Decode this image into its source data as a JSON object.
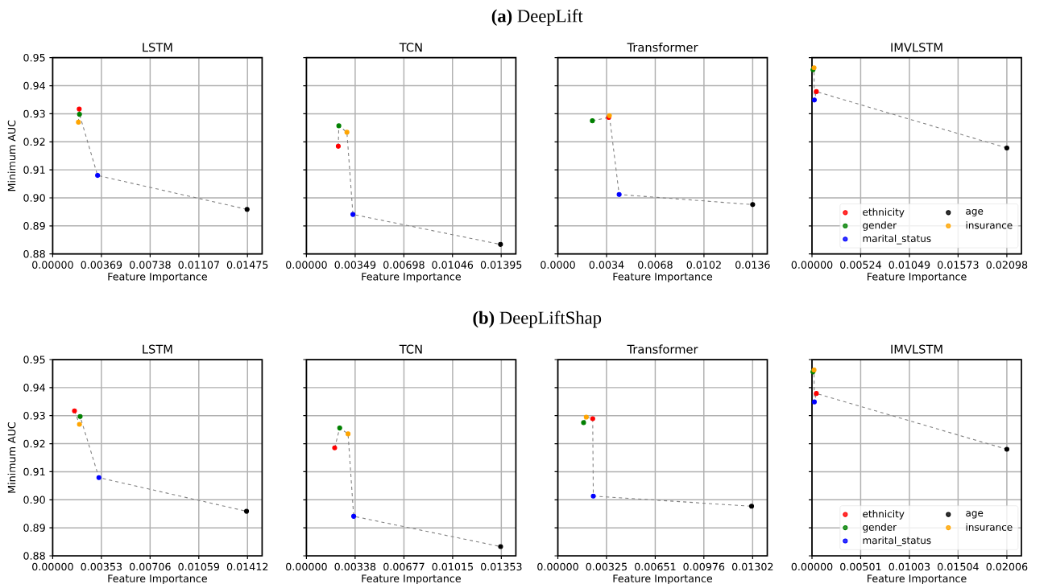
{
  "chart_data": [
    {
      "type": "scatter",
      "title": "LSTM",
      "xlabel": "Feature Importance",
      "ylabel": "Minimum AUC",
      "annotations": [
        "**(a)** DeepLift"
      ],
      "grid": true,
      "marker": "circle",
      "xlim": [
        0,
        0.01586
      ],
      "ylim": [
        0.88,
        0.95
      ],
      "xticks": [
        {
          "value": 0,
          "label": "0.00000"
        },
        {
          "value": 0.00369,
          "label": "0.00369"
        },
        {
          "value": 0.00738,
          "label": "0.00738"
        },
        {
          "value": 0.01107,
          "label": "0.01107"
        },
        {
          "value": 0.01475,
          "label": "0.01475"
        }
      ],
      "yticks": [
        {
          "value": 0.88,
          "label": "0.88"
        },
        {
          "value": 0.89,
          "label": "0.89"
        },
        {
          "value": 0.9,
          "label": "0.90"
        },
        {
          "value": 0.91,
          "label": "0.91"
        },
        {
          "value": 0.92,
          "label": "0.92"
        },
        {
          "value": 0.93,
          "label": "0.93"
        },
        {
          "value": 0.94,
          "label": "0.94"
        },
        {
          "value": 0.95,
          "label": "0.95"
        }
      ],
      "series": [
        {
          "type": "line",
          "color": "#808080",
          "line_style": "dashed",
          "marker": "none",
          "x": [
            0.00195,
            0.00201,
            0.00203,
            0.0034,
            0.01472
          ],
          "values": [
            0.927,
            0.9317,
            0.9298,
            0.908,
            0.8959
          ]
        },
        {
          "color": "#ff0000",
          "x": [
            0.00201
          ],
          "values": [
            0.9317
          ]
        },
        {
          "color": "#008000",
          "x": [
            0.00203
          ],
          "values": [
            0.9298
          ]
        },
        {
          "color": "#0000ff",
          "x": [
            0.0034
          ],
          "values": [
            0.908
          ]
        },
        {
          "color": "#000000",
          "x": [
            0.01472
          ],
          "values": [
            0.8959
          ]
        },
        {
          "color": "#ffa500",
          "x": [
            0.00195
          ],
          "values": [
            0.927
          ]
        }
      ]
    },
    {
      "type": "scatter",
      "title": "TCN",
      "xlabel": "Feature Importance",
      "tick_labels": "x",
      "grid": true,
      "marker": "circle",
      "xlim": [
        0,
        0.015
      ],
      "ylim": [
        0.88,
        0.95
      ],
      "xticks": [
        {
          "value": 0,
          "label": "0.00000"
        },
        {
          "value": 0.00349,
          "label": "0.00349"
        },
        {
          "value": 0.00698,
          "label": "0.00698"
        },
        {
          "value": 0.01046,
          "label": "0.01046"
        },
        {
          "value": 0.01395,
          "label": "0.01395"
        }
      ],
      "yticks": [
        {
          "value": 0.88,
          "label": null
        },
        {
          "value": 0.89,
          "label": null
        },
        {
          "value": 0.9,
          "label": null
        },
        {
          "value": 0.91,
          "label": null
        },
        {
          "value": 0.92,
          "label": null
        },
        {
          "value": 0.93,
          "label": null
        },
        {
          "value": 0.94,
          "label": null
        },
        {
          "value": 0.95,
          "label": null
        }
      ],
      "series": [
        {
          "type": "line",
          "color": "#808080",
          "line_style": "dashed",
          "marker": "none",
          "x": [
            0.00228,
            0.00232,
            0.0029,
            0.00333,
            0.0139
          ],
          "values": [
            0.9184,
            0.9257,
            0.9234,
            0.8941,
            0.8834
          ]
        },
        {
          "color": "#ff0000",
          "x": [
            0.00228
          ],
          "values": [
            0.9184
          ]
        },
        {
          "color": "#008000",
          "x": [
            0.00232
          ],
          "values": [
            0.9257
          ]
        },
        {
          "color": "#0000ff",
          "x": [
            0.00333
          ],
          "values": [
            0.8941
          ]
        },
        {
          "color": "#000000",
          "x": [
            0.0139
          ],
          "values": [
            0.8834
          ]
        },
        {
          "color": "#ffa500",
          "x": [
            0.0029
          ],
          "values": [
            0.9234
          ]
        }
      ]
    },
    {
      "type": "scatter",
      "title": "Transformer",
      "xlabel": "Feature Importance",
      "tick_labels": "x",
      "grid": true,
      "marker": "circle",
      "xlim": [
        0,
        0.01462
      ],
      "ylim": [
        0.88,
        0.95
      ],
      "xticks": [
        {
          "value": 0,
          "label": "0.0000"
        },
        {
          "value": 0.0034,
          "label": "0.0034"
        },
        {
          "value": 0.0068,
          "label": "0.0068"
        },
        {
          "value": 0.0102,
          "label": "0.0102"
        },
        {
          "value": 0.0136,
          "label": "0.0136"
        }
      ],
      "yticks": [
        {
          "value": 0.88,
          "label": null
        },
        {
          "value": 0.89,
          "label": null
        },
        {
          "value": 0.9,
          "label": null
        },
        {
          "value": 0.91,
          "label": null
        },
        {
          "value": 0.92,
          "label": null
        },
        {
          "value": 0.93,
          "label": null
        },
        {
          "value": 0.94,
          "label": null
        },
        {
          "value": 0.95,
          "label": null
        }
      ],
      "series": [
        {
          "type": "line",
          "color": "#808080",
          "line_style": "dashed",
          "marker": "none",
          "x": [
            0.00241,
            0.00355,
            0.0036,
            0.00428,
            0.0136
          ],
          "values": [
            0.9275,
            0.9287,
            0.9293,
            0.9012,
            0.8976
          ]
        },
        {
          "color": "#ff0000",
          "x": [
            0.00355
          ],
          "values": [
            0.9287
          ]
        },
        {
          "color": "#008000",
          "x": [
            0.00241
          ],
          "values": [
            0.9275
          ]
        },
        {
          "color": "#0000ff",
          "x": [
            0.00428
          ],
          "values": [
            0.9012
          ]
        },
        {
          "color": "#000000",
          "x": [
            0.0136
          ],
          "values": [
            0.8976
          ]
        },
        {
          "color": "#ffa500",
          "x": [
            0.0036
          ],
          "values": [
            0.9293
          ]
        }
      ]
    },
    {
      "type": "scatter",
      "title": "IMVLSTM",
      "xlabel": "Feature Importance",
      "tick_labels": "x",
      "grid": true,
      "marker": "circle",
      "legend": "bottom right",
      "xlim": [
        0,
        0.02255
      ],
      "ylim": [
        0.88,
        0.95
      ],
      "xticks": [
        {
          "value": 0,
          "label": "0.00000"
        },
        {
          "value": 0.00524,
          "label": "0.00524"
        },
        {
          "value": 0.01049,
          "label": "0.01049"
        },
        {
          "value": 0.01573,
          "label": "0.01573"
        },
        {
          "value": 0.02098,
          "label": "0.02098"
        }
      ],
      "yticks": [
        {
          "value": 0.88,
          "label": null
        },
        {
          "value": 0.89,
          "label": null
        },
        {
          "value": 0.9,
          "label": null
        },
        {
          "value": 0.91,
          "label": null
        },
        {
          "value": 0.92,
          "label": null
        },
        {
          "value": 0.93,
          "label": null
        },
        {
          "value": 0.94,
          "label": null
        },
        {
          "value": 0.95,
          "label": null
        }
      ],
      "series": [
        {
          "type": "line",
          "color": "#808080",
          "line_style": "dashed",
          "marker": "none",
          "x": [
            0.00011,
            0.00022,
            0.00025,
            0.00047,
            0.02098
          ],
          "values": [
            0.9457,
            0.9464,
            0.9349,
            0.9379,
            0.9178
          ]
        },
        {
          "name": "ethnicity",
          "color": "#ff0000",
          "x": [
            0.00047
          ],
          "values": [
            0.9379
          ]
        },
        {
          "name": "gender",
          "color": "#008000",
          "x": [
            0.00011
          ],
          "values": [
            0.9457
          ]
        },
        {
          "name": "marital_status",
          "color": "#0000ff",
          "x": [
            0.00025
          ],
          "values": [
            0.9349
          ]
        },
        {
          "name": "age",
          "color": "#000000",
          "x": [
            0.02098
          ],
          "values": [
            0.9178
          ]
        },
        {
          "name": "insurance",
          "color": "#ffa500",
          "x": [
            0.00022
          ],
          "values": [
            0.9464
          ]
        }
      ]
    },
    {
      "type": "scatter",
      "title": "LSTM",
      "xlabel": "Feature Importance",
      "ylabel": "Minimum AUC",
      "annotations": [
        "**(b)** DeepLiftShap"
      ],
      "grid": true,
      "marker": "circle",
      "xlim": [
        0,
        0.01518
      ],
      "ylim": [
        0.88,
        0.95
      ],
      "xticks": [
        {
          "value": 0,
          "label": "0.00000"
        },
        {
          "value": 0.00353,
          "label": "0.00353"
        },
        {
          "value": 0.00706,
          "label": "0.00706"
        },
        {
          "value": 0.01059,
          "label": "0.01059"
        },
        {
          "value": 0.01412,
          "label": "0.01412"
        }
      ],
      "yticks": [
        {
          "value": 0.88,
          "label": "0.88"
        },
        {
          "value": 0.89,
          "label": "0.89"
        },
        {
          "value": 0.9,
          "label": "0.90"
        },
        {
          "value": 0.91,
          "label": "0.91"
        },
        {
          "value": 0.92,
          "label": "0.92"
        },
        {
          "value": 0.93,
          "label": "0.93"
        },
        {
          "value": 0.94,
          "label": "0.94"
        },
        {
          "value": 0.95,
          "label": "0.95"
        }
      ],
      "series": [
        {
          "type": "line",
          "color": "#808080",
          "line_style": "dashed",
          "marker": "none",
          "x": [
            0.00158,
            0.00194,
            0.00199,
            0.00335,
            0.01405
          ],
          "values": [
            0.9317,
            0.9269,
            0.9297,
            0.9079,
            0.8959
          ]
        },
        {
          "color": "#ff0000",
          "x": [
            0.00158
          ],
          "values": [
            0.9317
          ]
        },
        {
          "color": "#008000",
          "x": [
            0.00199
          ],
          "values": [
            0.9297
          ]
        },
        {
          "color": "#0000ff",
          "x": [
            0.00335
          ],
          "values": [
            0.9079
          ]
        },
        {
          "color": "#000000",
          "x": [
            0.01405
          ],
          "values": [
            0.8959
          ]
        },
        {
          "color": "#ffa500",
          "x": [
            0.00194
          ],
          "values": [
            0.9269
          ]
        }
      ]
    },
    {
      "type": "scatter",
      "title": "TCN",
      "xlabel": "Feature Importance",
      "tick_labels": "x",
      "grid": true,
      "marker": "circle",
      "xlim": [
        0,
        0.01454
      ],
      "ylim": [
        0.88,
        0.95
      ],
      "xticks": [
        {
          "value": 0,
          "label": "0.00000"
        },
        {
          "value": 0.00338,
          "label": "0.00338"
        },
        {
          "value": 0.00677,
          "label": "0.00677"
        },
        {
          "value": 0.01015,
          "label": "0.01015"
        },
        {
          "value": 0.01353,
          "label": "0.01353"
        }
      ],
      "yticks": [
        {
          "value": 0.88,
          "label": null
        },
        {
          "value": 0.89,
          "label": null
        },
        {
          "value": 0.9,
          "label": null
        },
        {
          "value": 0.91,
          "label": null
        },
        {
          "value": 0.92,
          "label": null
        },
        {
          "value": 0.93,
          "label": null
        },
        {
          "value": 0.94,
          "label": null
        },
        {
          "value": 0.95,
          "label": null
        }
      ],
      "series": [
        {
          "type": "line",
          "color": "#808080",
          "line_style": "dashed",
          "marker": "none",
          "x": [
            0.00196,
            0.00231,
            0.00289,
            0.00328,
            0.01348
          ],
          "values": [
            0.9185,
            0.9256,
            0.9235,
            0.8941,
            0.8833
          ]
        },
        {
          "color": "#ff0000",
          "x": [
            0.00196
          ],
          "values": [
            0.9185
          ]
        },
        {
          "color": "#008000",
          "x": [
            0.00231
          ],
          "values": [
            0.9256
          ]
        },
        {
          "color": "#0000ff",
          "x": [
            0.00328
          ],
          "values": [
            0.8941
          ]
        },
        {
          "color": "#000000",
          "x": [
            0.01348
          ],
          "values": [
            0.8833
          ]
        },
        {
          "color": "#ffa500",
          "x": [
            0.00289
          ],
          "values": [
            0.9235
          ]
        }
      ]
    },
    {
      "type": "scatter",
      "title": "Transformer",
      "xlabel": "Feature Importance",
      "tick_labels": "x",
      "grid": true,
      "marker": "circle",
      "xlim": [
        0,
        0.014
      ],
      "ylim": [
        0.88,
        0.95
      ],
      "xticks": [
        {
          "value": 0,
          "label": "0.00000"
        },
        {
          "value": 0.00325,
          "label": "0.00325"
        },
        {
          "value": 0.00651,
          "label": "0.00651"
        },
        {
          "value": 0.00976,
          "label": "0.00976"
        },
        {
          "value": 0.01302,
          "label": "0.01302"
        }
      ],
      "yticks": [
        {
          "value": 0.88,
          "label": null
        },
        {
          "value": 0.89,
          "label": null
        },
        {
          "value": 0.9,
          "label": null
        },
        {
          "value": 0.91,
          "label": null
        },
        {
          "value": 0.92,
          "label": null
        },
        {
          "value": 0.93,
          "label": null
        },
        {
          "value": 0.94,
          "label": null
        },
        {
          "value": 0.95,
          "label": null
        }
      ],
      "series": [
        {
          "type": "line",
          "color": "#808080",
          "line_style": "dashed",
          "marker": "none",
          "x": [
            0.00172,
            0.0019,
            0.00233,
            0.00237,
            0.01295
          ],
          "values": [
            0.9275,
            0.9295,
            0.9289,
            0.9013,
            0.8977
          ]
        },
        {
          "color": "#ff0000",
          "x": [
            0.00233
          ],
          "values": [
            0.9289
          ]
        },
        {
          "color": "#008000",
          "x": [
            0.00172
          ],
          "values": [
            0.9275
          ]
        },
        {
          "color": "#0000ff",
          "x": [
            0.00237
          ],
          "values": [
            0.9013
          ]
        },
        {
          "color": "#000000",
          "x": [
            0.01295
          ],
          "values": [
            0.8977
          ]
        },
        {
          "color": "#ffa500",
          "x": [
            0.0019
          ],
          "values": [
            0.9295
          ]
        }
      ]
    },
    {
      "type": "scatter",
      "title": "IMVLSTM",
      "xlabel": "Feature Importance",
      "tick_labels": "x",
      "grid": true,
      "marker": "circle",
      "legend": "bottom right",
      "xlim": [
        0,
        0.02156
      ],
      "ylim": [
        0.88,
        0.95
      ],
      "xticks": [
        {
          "value": 0,
          "label": "0.00000"
        },
        {
          "value": 0.00501,
          "label": "0.00501"
        },
        {
          "value": 0.01003,
          "label": "0.01003"
        },
        {
          "value": 0.01504,
          "label": "0.01504"
        },
        {
          "value": 0.02006,
          "label": "0.02006"
        }
      ],
      "yticks": [
        {
          "value": 0.88,
          "label": null
        },
        {
          "value": 0.89,
          "label": null
        },
        {
          "value": 0.9,
          "label": null
        },
        {
          "value": 0.91,
          "label": null
        },
        {
          "value": 0.92,
          "label": null
        },
        {
          "value": 0.93,
          "label": null
        },
        {
          "value": 0.94,
          "label": null
        },
        {
          "value": 0.95,
          "label": null
        }
      ],
      "series": [
        {
          "type": "line",
          "color": "#808080",
          "line_style": "dashed",
          "marker": "none",
          "x": [
            0.0001,
            0.00021,
            0.00024,
            0.00045,
            0.02006
          ],
          "values": [
            0.9456,
            0.9463,
            0.9349,
            0.9379,
            0.918
          ]
        },
        {
          "name": "ethnicity",
          "color": "#ff0000",
          "x": [
            0.00045
          ],
          "values": [
            0.9379
          ]
        },
        {
          "name": "gender",
          "color": "#008000",
          "x": [
            0.0001
          ],
          "values": [
            0.9456
          ]
        },
        {
          "name": "marital_status",
          "color": "#0000ff",
          "x": [
            0.00024
          ],
          "values": [
            0.9349
          ]
        },
        {
          "name": "age",
          "color": "#000000",
          "x": [
            0.02006
          ],
          "values": [
            0.918
          ]
        },
        {
          "name": "insurance",
          "color": "#ffa500",
          "x": [
            0.00021
          ],
          "values": [
            0.9463
          ]
        }
      ]
    }
  ]
}
